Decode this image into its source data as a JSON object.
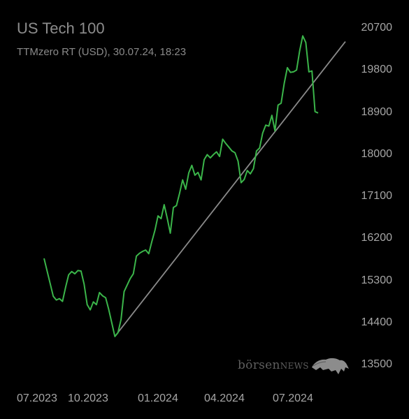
{
  "header": {
    "title": "US Tech 100",
    "subtitle": "TTMzero RT (USD), 30.07.24, 18:23"
  },
  "watermark": {
    "brand": "börsennews",
    "icon": "bear-icon"
  },
  "chart_data": {
    "type": "line",
    "title": "US Tech 100",
    "subtitle": "TTMzero RT (USD), 30.07.24, 18:23",
    "xlabel": "",
    "ylabel": "",
    "x_tick_labels": [
      "07.2023",
      "10.2023",
      "01.2024",
      "04.2024",
      "07.2024"
    ],
    "y_ticks": [
      13500,
      14400,
      15300,
      16200,
      17100,
      18000,
      18900,
      19800,
      20700
    ],
    "ylim": [
      13350,
      20800
    ],
    "y_axis_position": "right",
    "grid": false,
    "series": [
      {
        "color": "#3bb54a",
        "values": [
          15770,
          15500,
          15230,
          14960,
          14880,
          14910,
          14850,
          15150,
          15420,
          15490,
          15440,
          15510,
          15500,
          15220,
          14780,
          14670,
          14840,
          14780,
          15040,
          14970,
          14930,
          14680,
          14390,
          14100,
          14180,
          14460,
          15060,
          15200,
          15340,
          15440,
          15820,
          15880,
          15920,
          15950,
          15870,
          16130,
          16370,
          16680,
          16620,
          16920,
          16630,
          16310,
          16860,
          16900,
          17160,
          17450,
          17250,
          17600,
          17760,
          17550,
          17610,
          17450,
          17880,
          17990,
          17920,
          17990,
          18050,
          17950,
          18320,
          18230,
          18150,
          18070,
          18030,
          17850,
          17390,
          17460,
          17650,
          17580,
          17690,
          18070,
          18130,
          18450,
          18620,
          18600,
          18830,
          18500,
          19050,
          19090,
          19520,
          19850,
          19750,
          19760,
          19800,
          20210,
          20530,
          20390,
          19760,
          19780,
          18910,
          18880
        ]
      }
    ],
    "annotations": [
      {
        "type": "trendline",
        "from": [
          23,
          14100
        ],
        "to": [
          91,
          19830
        ],
        "color": "#8a8a8a"
      }
    ]
  }
}
